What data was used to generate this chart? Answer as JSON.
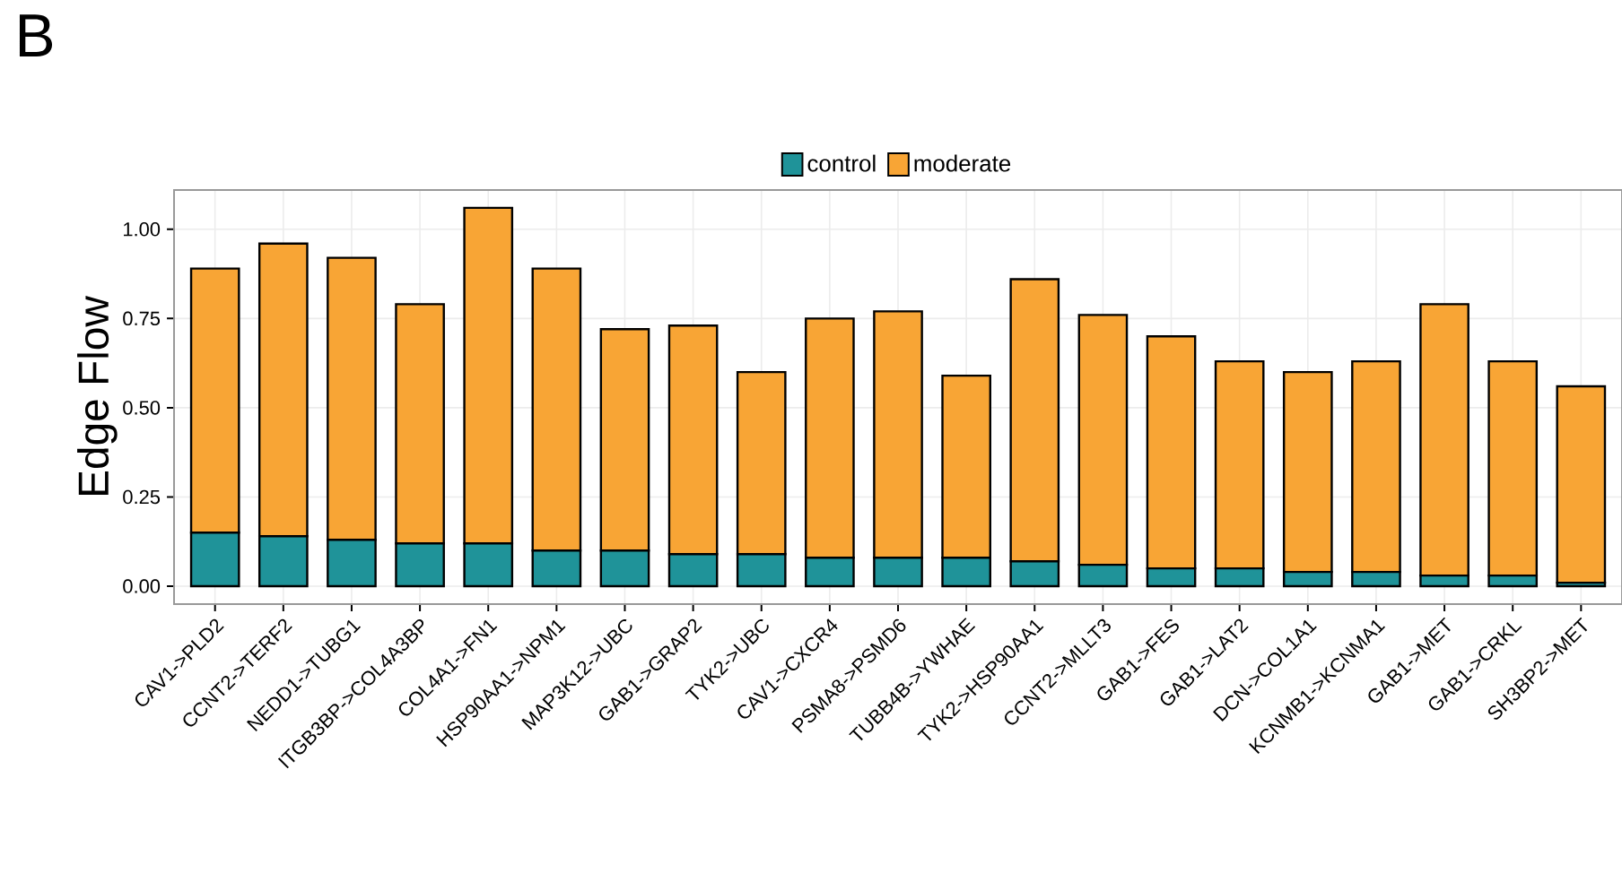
{
  "chart_data": {
    "type": "bar",
    "title": "B",
    "ylabel": "Edge Flow",
    "stacked": true,
    "categories": [
      "CAV1->PLD2",
      "CCNT2->TERF2",
      "NEDD1->TUBG1",
      "ITGB3BP->COL4A3BP",
      "COL4A1->FN1",
      "HSP90AA1->NPM1",
      "MAP3K12->UBC",
      "GAB1->GRAP2",
      "TYK2->UBC",
      "CAV1->CXCR4",
      "PSMA8->PSMD6",
      "TUBB4B->YWHAE",
      "TYK2->HSP90AA1",
      "CCNT2->MLLT3",
      "GAB1->FES",
      "GAB1->LAT2",
      "DCN->COL1A1",
      "KCNMB1->KCNMA1",
      "GAB1->MET",
      "GAB1->CRKL",
      "SH3BP2->MET"
    ],
    "series": [
      {
        "name": "control",
        "color": "#1f9399",
        "values": [
          0.15,
          0.14,
          0.13,
          0.12,
          0.12,
          0.1,
          0.1,
          0.09,
          0.09,
          0.08,
          0.08,
          0.08,
          0.07,
          0.06,
          0.05,
          0.05,
          0.04,
          0.04,
          0.03,
          0.03,
          0.01
        ]
      },
      {
        "name": "moderate",
        "color": "#f8a535",
        "values": [
          0.74,
          0.82,
          0.79,
          0.67,
          0.94,
          0.79,
          0.62,
          0.64,
          0.51,
          0.67,
          0.69,
          0.51,
          0.79,
          0.7,
          0.65,
          0.58,
          0.56,
          0.59,
          0.76,
          0.6,
          0.55
        ]
      }
    ],
    "ylim": [
      -0.05,
      1.11
    ],
    "yticks": [
      {
        "value": 0,
        "label": "0.00"
      },
      {
        "value": 0.25,
        "label": "0.25"
      },
      {
        "value": 0.5,
        "label": "0.50"
      },
      {
        "value": 0.75,
        "label": "0.75"
      },
      {
        "value": 1,
        "label": "1.00"
      }
    ],
    "grid": true,
    "legend": "top"
  }
}
